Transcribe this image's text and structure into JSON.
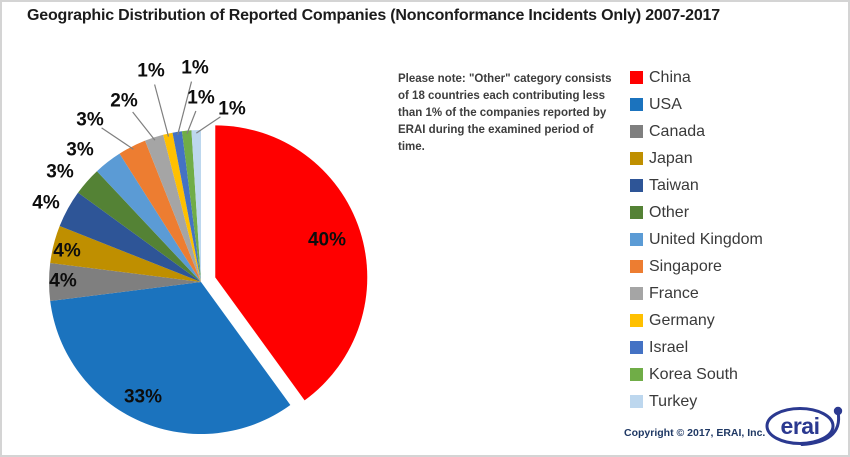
{
  "header": {
    "title": "Geographic Distribution of Reported Companies (Nonconformance Incidents Only) 2007-2017"
  },
  "note": {
    "text": "Please note: \"Other\" category consists of 18 countries each contributing less than 1% of the companies reported by ERAI during the examined period of time."
  },
  "chart_data": {
    "type": "pie",
    "title": "Geographic Distribution of Reported Companies (Nonconformance Incidents Only) 2007-2017",
    "unit": "percent",
    "direction": "clockwise",
    "start_angle_deg": 0,
    "exploded_slice": "China",
    "legend_position": "right",
    "data_label_format": "{value}%",
    "slices": [
      {
        "label": "China",
        "value": 40,
        "color": "#FF0000"
      },
      {
        "label": "USA",
        "value": 33,
        "color": "#1B73BE"
      },
      {
        "label": "Canada",
        "value": 4,
        "color": "#7F7F7F"
      },
      {
        "label": "Japan",
        "value": 4,
        "color": "#BF8F00"
      },
      {
        "label": "Taiwan",
        "value": 4,
        "color": "#2E5597"
      },
      {
        "label": "Other",
        "value": 3,
        "color": "#548235"
      },
      {
        "label": "United Kingdom",
        "value": 3,
        "color": "#5B9BD5"
      },
      {
        "label": "Singapore",
        "value": 3,
        "color": "#ED7D31"
      },
      {
        "label": "France",
        "value": 2,
        "color": "#A5A5A5"
      },
      {
        "label": "Germany",
        "value": 1,
        "color": "#FFC000"
      },
      {
        "label": "Israel",
        "value": 1,
        "color": "#4472C4"
      },
      {
        "label": "Korea South",
        "value": 1,
        "color": "#70AD47"
      },
      {
        "label": "Turkey",
        "value": 1,
        "color": "#BDD7EE"
      }
    ]
  },
  "footer": {
    "copyright": "Copyright © 2017, ERAI, Inc.",
    "logo_text": "erai"
  }
}
